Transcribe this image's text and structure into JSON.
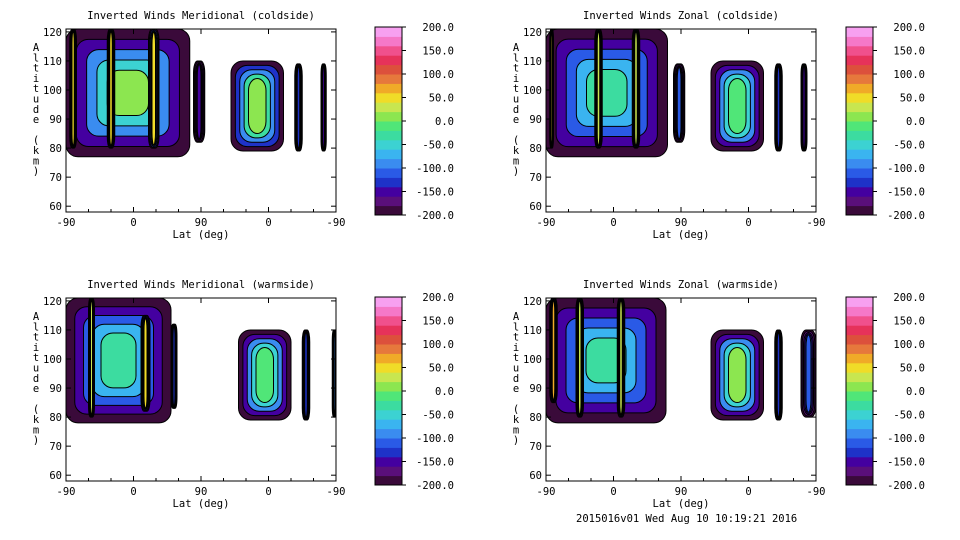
{
  "footer": "2015016v01 Wed Aug 10 10:19:21 2016",
  "colors": {
    "colorbar": [
      "#3a0a3a",
      "#5a0f7a",
      "#4400a0",
      "#1e32c8",
      "#2a5ae6",
      "#3a8cf0",
      "#3ab4f0",
      "#3cd2d2",
      "#3cdca0",
      "#50e678",
      "#8ce650",
      "#c8e650",
      "#f0dc28",
      "#f0aa28",
      "#e6783c",
      "#dc503c",
      "#e6325a",
      "#f0508c",
      "#f578c8",
      "#f7a0f0"
    ],
    "lines": "#000000"
  },
  "chart_data": [
    {
      "type": "heatmap",
      "title": "Inverted Winds Meridional (coldside)",
      "xlabel": "Lat (deg)",
      "ylabel": "Altitude (km)",
      "xticks": [
        "-90",
        "0",
        "90",
        "0",
        "-90"
      ],
      "yticks": [
        "60",
        "70",
        "80",
        "90",
        "100",
        "110",
        "120"
      ],
      "ylim": [
        58,
        121
      ],
      "colorbar": {
        "range": [
          -200,
          200
        ],
        "ticks": [
          "200.0",
          "150.0",
          "100.0",
          "50.0",
          "0.0",
          "-50.0",
          "-100.0",
          "-150.0",
          "-200.0"
        ]
      },
      "bands": [
        {
          "x": [
            -90,
            75
          ],
          "bottom": 77,
          "top": 121,
          "level": 0.0
        },
        {
          "x": [
            -85,
            -76
          ],
          "bottom": 80,
          "top": 121,
          "level": 45.0
        },
        {
          "x": [
            -35,
            -25
          ],
          "bottom": 80,
          "top": 121,
          "level": 40.0
        },
        {
          "x": [
            20,
            34
          ],
          "bottom": 80,
          "top": 121,
          "level": 40.0
        },
        {
          "x": [
            80,
            95
          ],
          "bottom": 82,
          "top": 110,
          "level": -150.0
        },
        {
          "x": [
            130,
            200
          ],
          "bottom": 79,
          "top": 110,
          "level": 10.0
        },
        {
          "x": [
            215,
            225
          ],
          "bottom": 79,
          "top": 109,
          "level": -140.0
        },
        {
          "x": [
            250,
            257
          ],
          "bottom": 79,
          "top": 109,
          "level": -150.0
        }
      ]
    },
    {
      "type": "heatmap",
      "title": "Inverted Winds Zonal (coldside)",
      "xlabel": "Lat (deg)",
      "ylabel": "Altitude (km)",
      "xticks": [
        "-90",
        "0",
        "90",
        "0",
        "-90"
      ],
      "yticks": [
        "60",
        "70",
        "80",
        "90",
        "100",
        "110",
        "120"
      ],
      "ylim": [
        58,
        121
      ],
      "colorbar": {
        "range": [
          -200,
          200
        ],
        "ticks": [
          "200.0",
          "150.0",
          "100.0",
          "50.0",
          "0.0",
          "-50.0",
          "-100.0",
          "-150.0",
          "-200.0"
        ]
      },
      "bands": [
        {
          "x": [
            -90,
            72
          ],
          "bottom": 77,
          "top": 121,
          "level": -25.0
        },
        {
          "x": [
            -85,
            -80
          ],
          "bottom": 80,
          "top": 121,
          "level": 40.0
        },
        {
          "x": [
            -25,
            -15
          ],
          "bottom": 80,
          "top": 121,
          "level": 30.0
        },
        {
          "x": [
            25,
            35
          ],
          "bottom": 80,
          "top": 121,
          "level": 30.0
        },
        {
          "x": [
            80,
            95
          ],
          "bottom": 82,
          "top": 109,
          "level": -120.0
        },
        {
          "x": [
            130,
            200
          ],
          "bottom": 79,
          "top": 110,
          "level": -10.0
        },
        {
          "x": [
            215,
            225
          ],
          "bottom": 79,
          "top": 109,
          "level": -140.0
        },
        {
          "x": [
            250,
            258
          ],
          "bottom": 79,
          "top": 109,
          "level": -150.0
        }
      ]
    },
    {
      "type": "heatmap",
      "title": "Inverted Winds Meridional (warmside)",
      "xlabel": "Lat (deg)",
      "ylabel": "Altitude (km)",
      "xticks": [
        "-90",
        "0",
        "90",
        "0",
        "-90"
      ],
      "yticks": [
        "60",
        "70",
        "80",
        "90",
        "100",
        "110",
        "120"
      ],
      "ylim": [
        58,
        121
      ],
      "colorbar": {
        "range": [
          -200,
          200
        ],
        "ticks": [
          "200.0",
          "150.0",
          "100.0",
          "50.0",
          "0.0",
          "-50.0",
          "-100.0",
          "-150.0",
          "-200.0"
        ]
      },
      "bands": [
        {
          "x": [
            -90,
            50
          ],
          "bottom": 78,
          "top": 121,
          "level": -30.0
        },
        {
          "x": [
            -60,
            -52
          ],
          "bottom": 80,
          "top": 121,
          "level": 20.0
        },
        {
          "x": [
            10,
            22
          ],
          "bottom": 82,
          "top": 115,
          "level": 40.0
        },
        {
          "x": [
            50,
            58
          ],
          "bottom": 83,
          "top": 112,
          "level": -130.0
        },
        {
          "x": [
            140,
            210
          ],
          "bottom": 79,
          "top": 110,
          "level": -10.0
        },
        {
          "x": [
            225,
            235
          ],
          "bottom": 79,
          "top": 110,
          "level": -140.0
        },
        {
          "x": [
            265,
            270
          ],
          "bottom": 80,
          "top": 110,
          "level": -100.0
        }
      ]
    },
    {
      "type": "heatmap",
      "title": "Inverted Winds Zonal (warmside)",
      "xlabel": "Lat (deg)",
      "ylabel": "Altitude (km)",
      "xticks": [
        "-90",
        "0",
        "90",
        "0",
        "-90"
      ],
      "yticks": [
        "60",
        "70",
        "80",
        "90",
        "100",
        "110",
        "120"
      ],
      "ylim": [
        58,
        121
      ],
      "colorbar": {
        "range": [
          -200,
          200
        ],
        "ticks": [
          "200.0",
          "150.0",
          "100.0",
          "50.0",
          "0.0",
          "-50.0",
          "-100.0",
          "-150.0",
          "-200.0"
        ]
      },
      "bands": [
        {
          "x": [
            -90,
            70
          ],
          "bottom": 78,
          "top": 121,
          "level": -30.0
        },
        {
          "x": [
            -85,
            -75
          ],
          "bottom": 85,
          "top": 121,
          "level": 60.0
        },
        {
          "x": [
            -50,
            -40
          ],
          "bottom": 80,
          "top": 121,
          "level": 30.0
        },
        {
          "x": [
            5,
            15
          ],
          "bottom": 80,
          "top": 121,
          "level": 20.0
        },
        {
          "x": [
            130,
            200
          ],
          "bottom": 79,
          "top": 110,
          "level": 0.0
        },
        {
          "x": [
            215,
            225
          ],
          "bottom": 79,
          "top": 110,
          "level": -140.0
        },
        {
          "x": [
            250,
            270
          ],
          "bottom": 80,
          "top": 110,
          "level": -110.0
        }
      ]
    }
  ]
}
